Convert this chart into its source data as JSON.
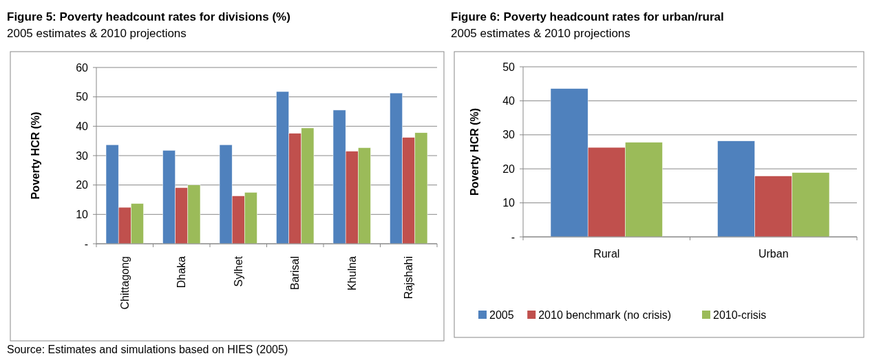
{
  "chart_data": [
    {
      "type": "bar",
      "title": "Figure 5: Poverty headcount rates for divisions (%)",
      "subtitle": "2005 estimates & 2010 projections",
      "ylabel": "Poverty HCR (%)",
      "categories": [
        "Chittagong",
        "Dhaka",
        "Sylhet",
        "Barisal",
        "Khulna",
        "Rajshahi"
      ],
      "series": [
        {
          "color": "#4f81bd",
          "values": [
            33.7,
            31.8,
            33.7,
            51.8,
            45.5,
            51.3
          ]
        },
        {
          "color": "#c0504d",
          "values": [
            12.4,
            19.1,
            16.3,
            37.6,
            31.5,
            36.2
          ]
        },
        {
          "color": "#9bbb59",
          "values": [
            13.7,
            20.0,
            17.5,
            39.4,
            32.7,
            37.8
          ]
        }
      ],
      "ylim": [
        0,
        60
      ],
      "yticks": [
        {
          "value": 0,
          "label": "-"
        },
        10,
        20,
        30,
        40,
        50,
        60
      ],
      "grid": "y",
      "legend": false,
      "annotations": [
        "Source: Estimates and simulations based on HIES (2005)"
      ]
    },
    {
      "type": "bar",
      "title": "Figure 6: Poverty headcount rates for urban/rural",
      "subtitle": "2005 estimates & 2010 projections",
      "ylabel": "Poverty HCR (%)",
      "categories": [
        "Rural",
        "Urban"
      ],
      "series": [
        {
          "name": "2005",
          "color": "#4f81bd",
          "values": [
            43.6,
            28.2
          ]
        },
        {
          "name": "2010 benchmark (no crisis)",
          "color": "#c0504d",
          "values": [
            26.3,
            17.9
          ]
        },
        {
          "name": "2010-crisis",
          "color": "#9bbb59",
          "values": [
            27.8,
            18.9
          ]
        }
      ],
      "ylim": [
        0,
        50
      ],
      "yticks": [
        {
          "value": 0,
          "label": "-"
        },
        10,
        20,
        30,
        40,
        50
      ],
      "grid": "y",
      "legend": "bottom"
    }
  ]
}
